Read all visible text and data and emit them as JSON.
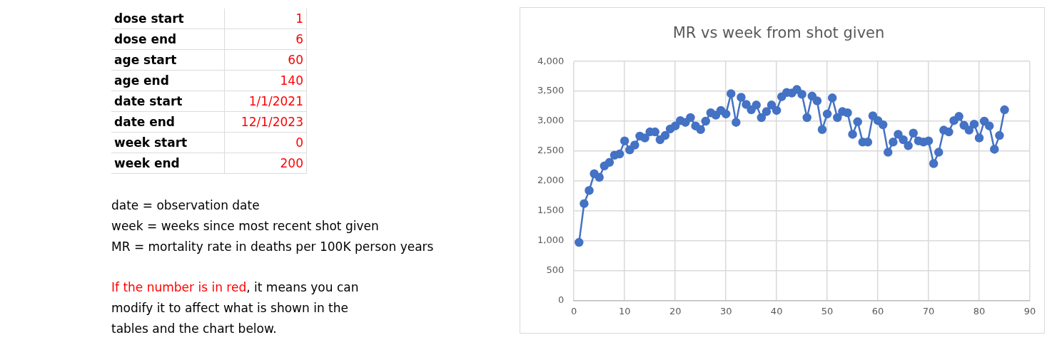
{
  "chart_data": [
    {
      "type": "other",
      "annotations": [
        "dose start",
        "1",
        "dose end",
        "6",
        "age start",
        "60",
        "age end",
        "140",
        "date start",
        "1/1/2021",
        "date end",
        "12/1/2023",
        "week start",
        "0",
        "week end",
        "200",
        "date = observation date",
        "week = weeks since most recent shot given",
        "MR = mortality rate in deaths per 100K person years",
        "If the number is in red",
        ", it means you can modify it to affect what is shown in the tables and the chart below."
      ]
    },
    {
      "type": "line",
      "title": "MR vs week from shot given",
      "color": "#4472c4",
      "marker": "circle",
      "grid": true,
      "legend": false,
      "x": [
        1,
        2,
        3,
        4,
        5,
        6,
        7,
        8,
        9,
        10,
        11,
        12,
        13,
        14,
        15,
        16,
        17,
        18,
        19,
        20,
        21,
        22,
        23,
        24,
        25,
        26,
        27,
        28,
        29,
        30,
        31,
        32,
        33,
        34,
        35,
        36,
        37,
        38,
        39,
        40,
        41,
        42,
        43,
        44,
        45,
        46,
        47,
        48,
        49,
        50,
        51,
        52,
        53,
        54,
        55,
        56,
        57,
        58,
        59,
        60,
        61,
        62,
        63,
        64,
        65,
        66,
        67,
        68,
        69,
        70,
        71,
        72,
        73,
        74,
        75,
        76,
        77,
        78,
        79,
        80,
        81,
        82,
        83,
        84,
        85
      ],
      "values": [
        970,
        1620,
        1840,
        2120,
        2060,
        2250,
        2310,
        2430,
        2450,
        2670,
        2520,
        2600,
        2750,
        2720,
        2820,
        2820,
        2690,
        2760,
        2870,
        2920,
        3010,
        2980,
        3060,
        2920,
        2860,
        3000,
        3140,
        3100,
        3180,
        3120,
        3460,
        2980,
        3400,
        3280,
        3190,
        3270,
        3060,
        3160,
        3270,
        3180,
        3410,
        3480,
        3470,
        3530,
        3450,
        3060,
        3420,
        3340,
        2860,
        3120,
        3390,
        3060,
        3160,
        3140,
        2780,
        2990,
        2650,
        2650,
        3090,
        3010,
        2940,
        2480,
        2650,
        2780,
        2690,
        2590,
        2800,
        2670,
        2650,
        2670,
        2290,
        2480,
        2850,
        2820,
        3010,
        3080,
        2930,
        2850,
        2950,
        2720,
        3000,
        2920,
        2530,
        2760,
        3190
      ],
      "xlim": [
        0,
        90
      ],
      "xticks": [
        0,
        10,
        20,
        30,
        40,
        50,
        60,
        70,
        80,
        90
      ],
      "ylim": [
        0,
        4000
      ],
      "yticks": [
        0,
        500,
        {
          "value": 1000,
          "label": "1,000"
        },
        {
          "value": 1500,
          "label": "1,500"
        },
        {
          "value": 2000,
          "label": "2,000"
        },
        {
          "value": 2500,
          "label": "2,500"
        },
        {
          "value": 3000,
          "label": "3,000"
        },
        {
          "value": 3500,
          "label": "3,500"
        },
        {
          "value": 4000,
          "label": "4,000"
        }
      ]
    }
  ]
}
